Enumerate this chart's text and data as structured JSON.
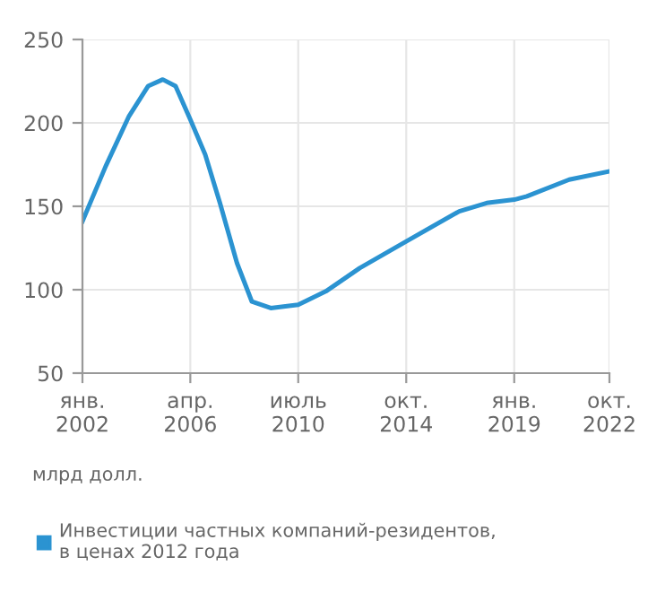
{
  "chart_data": {
    "type": "line",
    "ylabel": "млрд долл.",
    "x": [
      "2002-01",
      "2002-12",
      "2003-11",
      "2004-08",
      "2005-03",
      "2005-09",
      "2006-04",
      "2006-11",
      "2007-06",
      "2008-02",
      "2008-09",
      "2009-06",
      "2010-07",
      "2011-08",
      "2012-12",
      "2014-10",
      "2016-11",
      "2017-12",
      "2019-01",
      "2019-07",
      "2021-03",
      "2022-10"
    ],
    "series": [
      {
        "name": "Инвестиции частных компаний-резидентов,\nв ценах 2012 года",
        "color": "#2b93d1",
        "values": [
          141,
          174,
          204,
          222,
          226,
          222,
          202,
          181,
          152,
          116,
          93,
          89,
          91,
          99,
          113,
          129,
          147,
          152,
          154,
          156,
          166,
          171
        ]
      }
    ],
    "xlim": [
      "2002-01",
      "2022-10"
    ],
    "xticks": [
      {
        "value": "2002-01",
        "label": "янв.\n2002"
      },
      {
        "value": "2006-04",
        "label": "апр.\n2006"
      },
      {
        "value": "2010-07",
        "label": "июль\n2010"
      },
      {
        "value": "2014-10",
        "label": "окт.\n2014"
      },
      {
        "value": "2019-01",
        "label": "янв.\n2019"
      },
      {
        "value": "2022-10",
        "label": "окт.\n2022"
      }
    ],
    "ylim": [
      50,
      250
    ],
    "yticks": [
      50,
      100,
      150,
      200,
      250
    ],
    "grid": true,
    "legend": "bottom",
    "marker": "none",
    "line_style": "solid"
  }
}
